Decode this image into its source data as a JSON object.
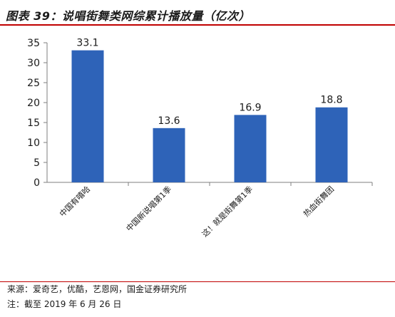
{
  "title": "图表 39：说唱街舞类网综累计播放量（亿次）",
  "footer": {
    "source": "来源：爱奇艺，优酷，艺恩网，国金证券研究所",
    "note": "注：截至 2019 年 6 月 26 日"
  },
  "colors": {
    "bar": "#2e63b8",
    "title_rule": "#c00000",
    "axis": "#7f7f7f"
  },
  "chart_data": {
    "type": "bar",
    "categories": [
      "中国有嘻哈",
      "中国新说唱第1季",
      "这！就是街舞第1季",
      "热血街舞团"
    ],
    "values": [
      33.1,
      13.6,
      16.9,
      18.8
    ],
    "data_labels": [
      "33.1",
      "13.6",
      "16.9",
      "18.8"
    ],
    "ylim": [
      0,
      35
    ],
    "yticks": [
      0,
      5,
      10,
      15,
      20,
      25,
      30,
      35
    ],
    "xlabel": "",
    "ylabel": "",
    "grid": false,
    "legend": "none"
  }
}
